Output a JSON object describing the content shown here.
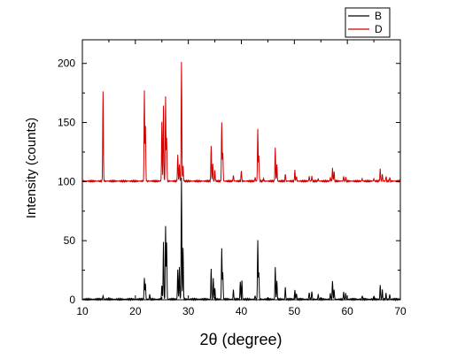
{
  "chart_data": {
    "type": "line",
    "xlabel": "2θ (degree)",
    "ylabel": "Intensity (counts)",
    "xlim": [
      10,
      70
    ],
    "ylim": [
      0,
      220
    ],
    "x_ticks": [
      10,
      20,
      30,
      40,
      50,
      60,
      70
    ],
    "y_ticks": [
      0,
      50,
      100,
      150,
      200
    ],
    "grid": false,
    "legend": {
      "placement": "top-right",
      "entries": [
        "B",
        "D"
      ]
    },
    "series": [
      {
        "name": "B",
        "color": "#000000",
        "baseline": 0,
        "peaks": [
          [
            13.9,
            3
          ],
          [
            21.7,
            18
          ],
          [
            21.9,
            13
          ],
          [
            22.7,
            4
          ],
          [
            25.0,
            12
          ],
          [
            25.3,
            48
          ],
          [
            25.7,
            62
          ],
          [
            25.9,
            48
          ],
          [
            28.0,
            25
          ],
          [
            28.3,
            27
          ],
          [
            28.7,
            103
          ],
          [
            29.0,
            43
          ],
          [
            34.3,
            26
          ],
          [
            34.7,
            18
          ],
          [
            35.0,
            10
          ],
          [
            36.3,
            43
          ],
          [
            36.5,
            23
          ],
          [
            38.5,
            8
          ],
          [
            39.8,
            15
          ],
          [
            40.1,
            16
          ],
          [
            42.6,
            3
          ],
          [
            43.1,
            50
          ],
          [
            43.3,
            23
          ],
          [
            46.4,
            27
          ],
          [
            46.7,
            16
          ],
          [
            48.3,
            10
          ],
          [
            50.1,
            8
          ],
          [
            50.4,
            5
          ],
          [
            52.8,
            6
          ],
          [
            53.3,
            7
          ],
          [
            54.5,
            4
          ],
          [
            56.8,
            5
          ],
          [
            57.2,
            16
          ],
          [
            57.5,
            8
          ],
          [
            59.3,
            6
          ],
          [
            59.7,
            5
          ],
          [
            62.8,
            3
          ],
          [
            65.0,
            3
          ],
          [
            66.2,
            12
          ],
          [
            66.6,
            8
          ],
          [
            67.3,
            5
          ],
          [
            68.0,
            4
          ]
        ]
      },
      {
        "name": "D",
        "color": "#cc0000",
        "baseline": 100,
        "peaks": [
          [
            13.9,
            176
          ],
          [
            21.7,
            177
          ],
          [
            21.9,
            147
          ],
          [
            25.0,
            150
          ],
          [
            25.3,
            164
          ],
          [
            25.7,
            171
          ],
          [
            25.9,
            136
          ],
          [
            28.0,
            123
          ],
          [
            28.3,
            114
          ],
          [
            28.7,
            201
          ],
          [
            29.0,
            113
          ],
          [
            34.3,
            130
          ],
          [
            34.6,
            115
          ],
          [
            35.0,
            109
          ],
          [
            36.3,
            150
          ],
          [
            36.5,
            124
          ],
          [
            38.5,
            105
          ],
          [
            40.0,
            109
          ],
          [
            42.6,
            103
          ],
          [
            43.1,
            144
          ],
          [
            43.3,
            121
          ],
          [
            44.2,
            102
          ],
          [
            46.4,
            128
          ],
          [
            46.7,
            114
          ],
          [
            48.3,
            106
          ],
          [
            50.1,
            109
          ],
          [
            50.4,
            104
          ],
          [
            52.8,
            104
          ],
          [
            53.3,
            104
          ],
          [
            54.5,
            102
          ],
          [
            56.8,
            103
          ],
          [
            57.2,
            111
          ],
          [
            57.5,
            108
          ],
          [
            59.3,
            104
          ],
          [
            59.7,
            103
          ],
          [
            62.8,
            102
          ],
          [
            65.0,
            102
          ],
          [
            66.2,
            110
          ],
          [
            66.6,
            106
          ],
          [
            67.3,
            104
          ],
          [
            68.0,
            103
          ]
        ]
      }
    ]
  }
}
